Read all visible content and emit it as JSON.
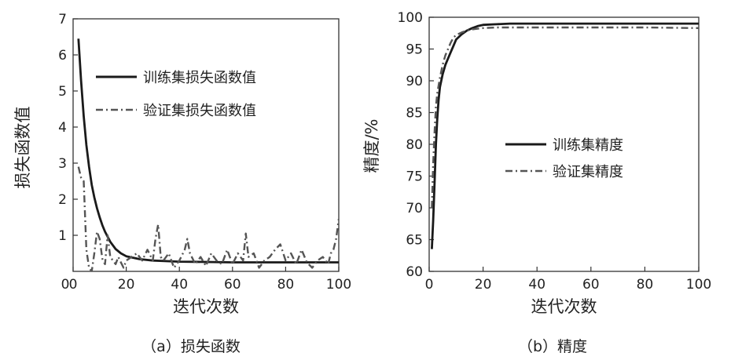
{
  "chart_data": [
    {
      "type": "line",
      "caption": "（a）损失函数",
      "xlabel": "迭代次数",
      "ylabel": "损失函数值",
      "xlim": [
        0,
        100
      ],
      "ylim": [
        0,
        7
      ],
      "xticks": [
        0,
        20,
        40,
        60,
        80,
        100
      ],
      "yticks": [
        1,
        2,
        3,
        4,
        5,
        6,
        7
      ],
      "legend_position": "top-right",
      "series": [
        {
          "name": "训练集损失函数值",
          "style": "solid",
          "color": "#1a1a1a",
          "x": [
            2,
            3,
            4,
            5,
            6,
            7,
            8,
            9,
            10,
            11,
            12,
            14,
            16,
            18,
            20,
            25,
            30,
            40,
            50,
            60,
            70,
            80,
            90,
            100
          ],
          "y": [
            6.45,
            5.3,
            4.3,
            3.5,
            2.9,
            2.4,
            2.05,
            1.75,
            1.5,
            1.28,
            1.1,
            0.82,
            0.62,
            0.5,
            0.42,
            0.34,
            0.3,
            0.27,
            0.26,
            0.25,
            0.25,
            0.25,
            0.25,
            0.25
          ]
        },
        {
          "name": "验证集损失函数值",
          "style": "dashdot",
          "color": "#555555",
          "x": [
            2,
            3,
            4,
            5,
            6,
            7,
            8,
            9,
            10,
            11,
            12,
            13,
            14,
            15,
            16,
            17,
            18,
            19,
            20,
            22,
            24,
            26,
            28,
            30,
            31,
            32,
            33,
            34,
            36,
            38,
            40,
            42,
            43,
            44,
            46,
            48,
            50,
            52,
            54,
            56,
            58,
            60,
            62,
            64,
            65,
            66,
            68,
            70,
            72,
            74,
            76,
            78,
            80,
            82,
            84,
            86,
            88,
            90,
            92,
            94,
            96,
            97,
            98,
            99,
            100
          ],
          "y": [
            2.9,
            2.6,
            2.5,
            0.6,
            0.1,
            0.0,
            0.5,
            1.1,
            0.9,
            0.35,
            0.2,
            1.0,
            0.4,
            0.3,
            0.2,
            0.4,
            0.25,
            0.1,
            0.3,
            0.4,
            0.5,
            0.3,
            0.6,
            0.3,
            0.9,
            1.3,
            0.4,
            0.3,
            0.5,
            0.1,
            0.3,
            0.6,
            0.9,
            0.5,
            0.2,
            0.4,
            0.15,
            0.5,
            0.3,
            0.2,
            0.6,
            0.2,
            0.5,
            0.3,
            1.05,
            0.4,
            0.5,
            0.1,
            0.3,
            0.4,
            0.6,
            0.75,
            0.3,
            0.5,
            0.2,
            0.6,
            0.25,
            0.1,
            0.3,
            0.4,
            0.2,
            0.5,
            0.6,
            0.9,
            1.45
          ]
        }
      ]
    },
    {
      "type": "line",
      "caption": "（b）精度",
      "xlabel": "迭代次数",
      "ylabel": "精度/%",
      "xlim": [
        0,
        100
      ],
      "ylim": [
        60,
        100
      ],
      "xticks": [
        0,
        20,
        40,
        60,
        80,
        100
      ],
      "yticks": [
        60,
        65,
        70,
        75,
        80,
        85,
        90,
        95,
        100
      ],
      "legend_position": "center-right",
      "series": [
        {
          "name": "训练集精度",
          "style": "solid",
          "color": "#1a1a1a",
          "x": [
            1,
            1.5,
            2,
            2.5,
            3,
            3.5,
            4,
            5,
            6,
            7,
            8,
            9,
            10,
            12,
            14,
            16,
            18,
            20,
            25,
            30,
            40,
            60,
            80,
            100
          ],
          "y": [
            63.5,
            68,
            74,
            80,
            84,
            87,
            89,
            91,
            92.5,
            93.5,
            94.5,
            95.5,
            96.5,
            97.3,
            97.9,
            98.3,
            98.6,
            98.8,
            98.9,
            99,
            99,
            99,
            99,
            99
          ]
        },
        {
          "name": "验证集精度",
          "style": "dashdot",
          "color": "#555555",
          "x": [
            1,
            1.5,
            2,
            2.5,
            3,
            4,
            5,
            6,
            7,
            8,
            9,
            10,
            12,
            14,
            16,
            18,
            20,
            25,
            30,
            40,
            60,
            80,
            100
          ],
          "y": [
            70,
            77,
            82,
            86,
            88,
            90.5,
            92.5,
            94,
            95,
            96,
            96.8,
            97.2,
            97.6,
            97.9,
            98.1,
            98.2,
            98.3,
            98.4,
            98.4,
            98.4,
            98.4,
            98.4,
            98.3
          ]
        }
      ]
    }
  ]
}
